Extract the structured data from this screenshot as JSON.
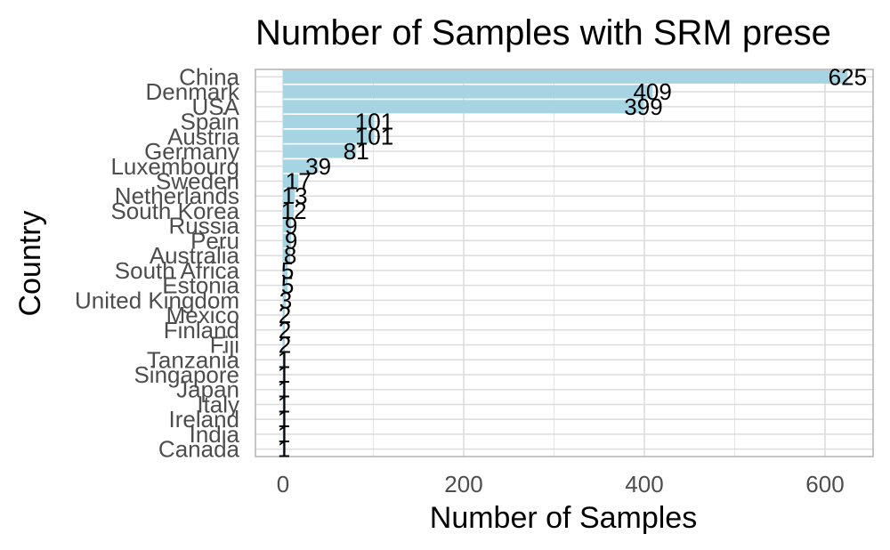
{
  "chart_data": {
    "type": "bar",
    "orientation": "horizontal",
    "title": "Number of Samples with SRM prese",
    "xlabel": "Number of Samples",
    "ylabel": "Country",
    "categories": [
      "China",
      "Denmark",
      "USA",
      "Spain",
      "Austria",
      "Germany",
      "Luxembourg",
      "Sweden",
      "Netherlands",
      "South Korea",
      "Russia",
      "Peru",
      "Australia",
      "South Africa",
      "Estonia",
      "United Kingdom",
      "Mexico",
      "Finland",
      "Fiji",
      "Tanzania",
      "Singapore",
      "Japan",
      "Italy",
      "Ireland",
      "India",
      "Canada"
    ],
    "values": [
      625,
      409,
      399,
      101,
      101,
      81,
      39,
      17,
      13,
      12,
      9,
      9,
      8,
      5,
      5,
      3,
      2,
      2,
      2,
      1,
      1,
      1,
      1,
      1,
      1,
      1
    ],
    "xlim": [
      -30,
      650
    ],
    "xticks": [
      0,
      200,
      400,
      600
    ],
    "grid": true,
    "bar_color": "#a6d4e3",
    "grid_color": "#dcdcdc",
    "panel_border_color": "#b3b3b3"
  }
}
